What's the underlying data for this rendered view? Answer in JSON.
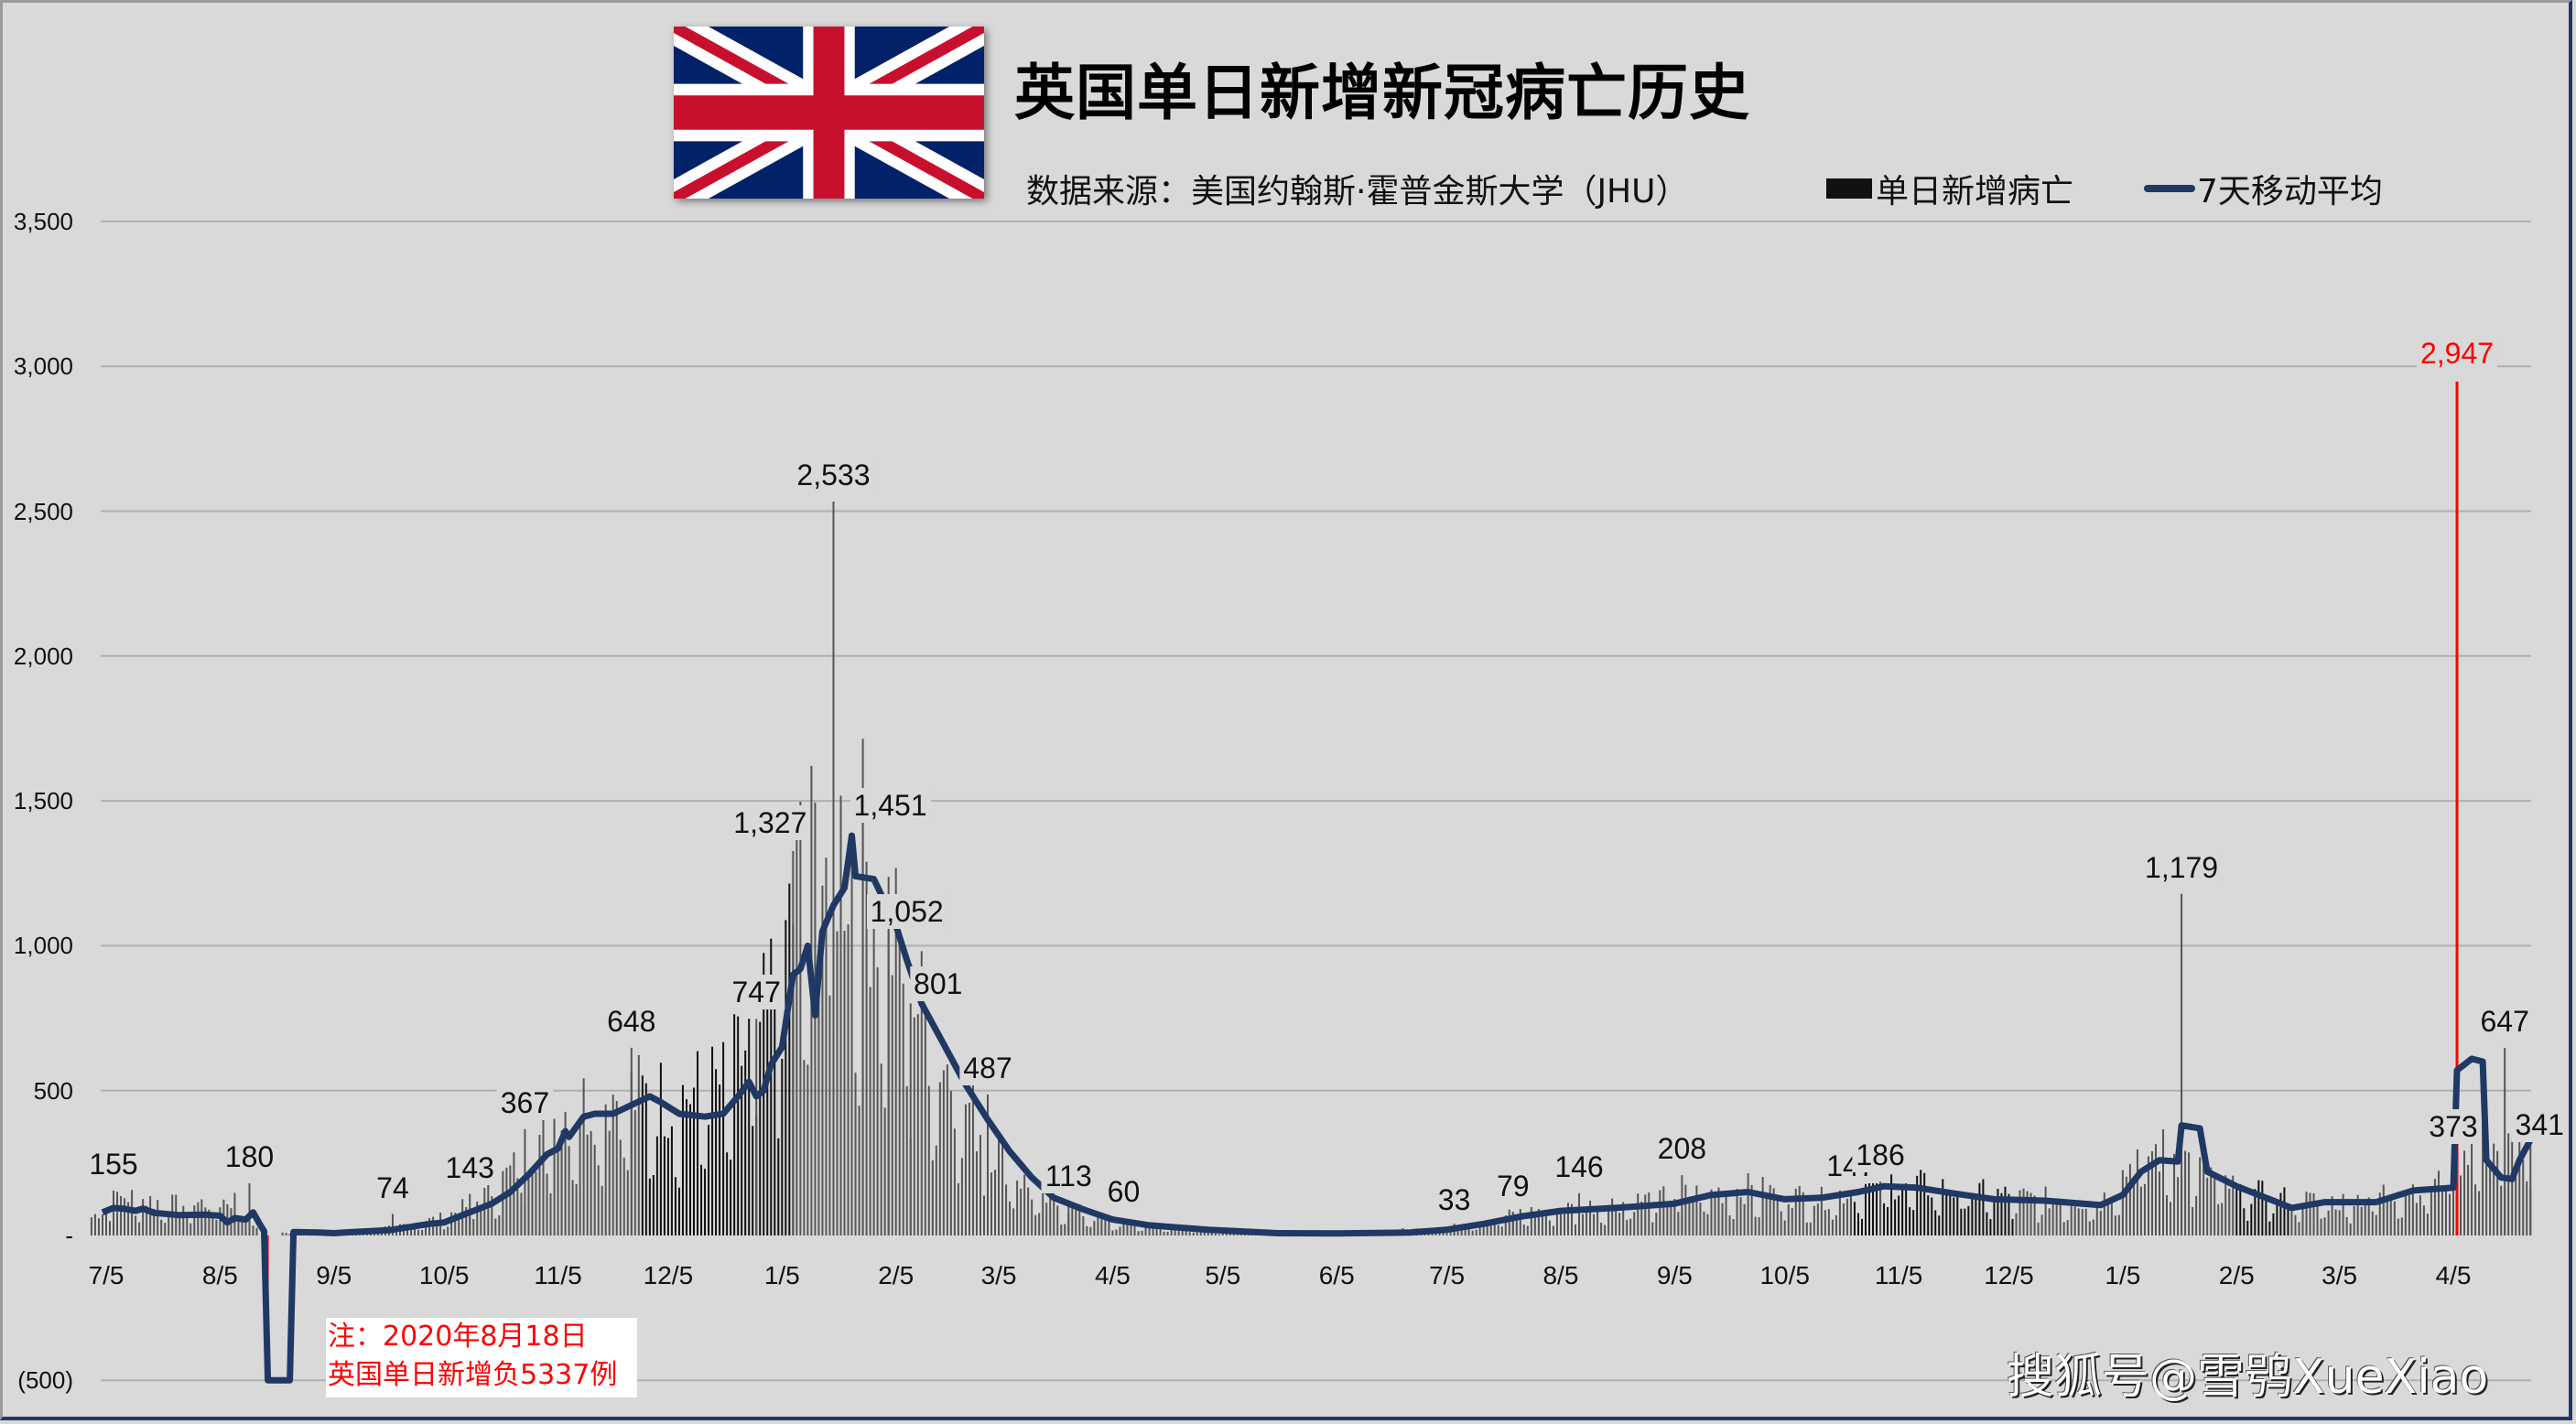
{
  "header": {
    "title": "英国单日新增新冠病亡历史",
    "source": "数据来源：美国约翰斯·霍普金斯大学（JHU）",
    "flag_icon": "uk-flag-icon"
  },
  "legend": {
    "bar_label": "单日新增病亡",
    "line_label": "7天移动平均"
  },
  "note": {
    "line1": "注：2020年8月18日",
    "line2": "英国单日新增负5337例"
  },
  "watermark": "搜狐号@雪鸮XueXiao",
  "colors": {
    "background": "#d9d9d9",
    "bars": "#555555",
    "bars_dark": "#111111",
    "ma_line": "#1f3864",
    "highlight": "#ff0000",
    "grid": "#b0b0b0"
  },
  "chart_data": {
    "type": "bar",
    "title": "英国单日新增新冠病亡历史",
    "subtitle": "数据来源：美国约翰斯·霍普金斯大学（JHU）",
    "xlabel": "",
    "ylabel": "",
    "ylim": [
      -500,
      3500
    ],
    "yticks": [
      {
        "value": 3500,
        "label": "3,500"
      },
      {
        "value": 3000,
        "label": "3,000"
      },
      {
        "value": 2500,
        "label": "2,500"
      },
      {
        "value": 2000,
        "label": "2,000"
      },
      {
        "value": 1500,
        "label": "1,500"
      },
      {
        "value": 1000,
        "label": "1,000"
      },
      {
        "value": 500,
        "label": "500"
      },
      {
        "value": 0,
        "label": "-"
      },
      {
        "value": -500,
        "label": "(500)"
      }
    ],
    "grid": true,
    "legend_position": "top",
    "x_tick_labels": [
      "7/5",
      "8/5",
      "9/5",
      "10/5",
      "11/5",
      "12/5",
      "1/5",
      "2/5",
      "3/5",
      "4/5",
      "5/5",
      "6/5",
      "7/5",
      "8/5",
      "9/5",
      "10/5",
      "11/5",
      "12/5",
      "1/5",
      "2/5",
      "3/5",
      "4/5"
    ],
    "x_range": [
      "2020-07-01",
      "2022-04-26"
    ],
    "series": [
      {
        "name": "单日新增病亡",
        "kind": "bar",
        "daily_envelope": [
          [
            "2020-07-01",
            60
          ],
          [
            "2020-07-10",
            130
          ],
          [
            "2020-07-25",
            100
          ],
          [
            "2020-08-03",
            110
          ],
          [
            "2020-08-10",
            120
          ],
          [
            "2020-08-15",
            20
          ],
          [
            "2020-08-18",
            -5337
          ],
          [
            "2020-08-22",
            10
          ],
          [
            "2020-09-05",
            12
          ],
          [
            "2020-09-20",
            25
          ],
          [
            "2020-10-05",
            60
          ],
          [
            "2020-10-15",
            120
          ],
          [
            "2020-10-25",
            230
          ],
          [
            "2020-11-05",
            400
          ],
          [
            "2020-11-20",
            470
          ],
          [
            "2020-12-05",
            450
          ],
          [
            "2020-12-20",
            500
          ],
          [
            "2020-12-31",
            700
          ],
          [
            "2021-01-10",
            1200
          ],
          [
            "2021-01-20",
            1300
          ],
          [
            "2021-01-27",
            1250
          ],
          [
            "2021-02-05",
            950
          ],
          [
            "2021-02-15",
            650
          ],
          [
            "2021-03-01",
            330
          ],
          [
            "2021-03-15",
            130
          ],
          [
            "2021-04-05",
            40
          ],
          [
            "2021-05-05",
            10
          ],
          [
            "2021-06-05",
            8
          ],
          [
            "2021-07-05",
            25
          ],
          [
            "2021-07-25",
            75
          ],
          [
            "2021-08-15",
            100
          ],
          [
            "2021-09-05",
            130
          ],
          [
            "2021-09-25",
            155
          ],
          [
            "2021-10-15",
            120
          ],
          [
            "2021-11-01",
            180
          ],
          [
            "2021-11-20",
            150
          ],
          [
            "2021-12-10",
            125
          ],
          [
            "2021-12-30",
            110
          ],
          [
            "2022-01-10",
            280
          ],
          [
            "2022-01-20",
            270
          ],
          [
            "2022-02-05",
            150
          ],
          [
            "2022-02-20",
            120
          ],
          [
            "2022-03-05",
            110
          ],
          [
            "2022-03-20",
            150
          ],
          [
            "2022-04-01",
            170
          ],
          [
            "2022-04-10",
            330
          ],
          [
            "2022-04-20",
            280
          ],
          [
            "2022-04-26",
            300
          ]
        ],
        "labeled_points": [
          {
            "date": "2020-07-07",
            "value": 155
          },
          {
            "date": "2020-08-13",
            "value": 180
          },
          {
            "date": "2020-09-21",
            "value": 74
          },
          {
            "date": "2020-10-12",
            "value": 143
          },
          {
            "date": "2020-10-27",
            "value": 367
          },
          {
            "date": "2020-11-25",
            "value": 648
          },
          {
            "date": "2020-12-29",
            "value": 747
          },
          {
            "date": "2021-01-08",
            "value": 1327
          },
          {
            "date": "2021-01-19",
            "value": 2533
          },
          {
            "date": "2021-01-27",
            "value": 1451
          },
          {
            "date": "2021-02-03",
            "value": 1052
          },
          {
            "date": "2021-02-09",
            "value": 801
          },
          {
            "date": "2021-03-02",
            "value": 487
          },
          {
            "date": "2021-03-24",
            "value": 113
          },
          {
            "date": "2021-04-08",
            "value": 60
          },
          {
            "date": "2021-07-07",
            "value": 33
          },
          {
            "date": "2021-07-23",
            "value": 79
          },
          {
            "date": "2021-08-10",
            "value": 146
          },
          {
            "date": "2021-09-07",
            "value": 208
          },
          {
            "date": "2021-10-23",
            "value": 147
          },
          {
            "date": "2021-10-31",
            "value": 186
          },
          {
            "date": "2022-01-21",
            "value": 1179
          },
          {
            "date": "2022-04-06",
            "value": 2947,
            "highlight": true
          },
          {
            "date": "2022-04-05",
            "value": 373
          },
          {
            "date": "2022-04-19",
            "value": 647
          },
          {
            "date": "2022-04-26",
            "value": 341
          }
        ],
        "negative_outlier": {
          "date": "2020-08-18",
          "value": -5337
        }
      },
      {
        "name": "7天移动平均",
        "kind": "line",
        "points": [
          [
            "2020-07-04",
            80
          ],
          [
            "2020-07-07",
            95
          ],
          [
            "2020-07-10",
            92
          ],
          [
            "2020-07-13",
            85
          ],
          [
            "2020-07-15",
            93
          ],
          [
            "2020-07-18",
            78
          ],
          [
            "2020-07-25",
            70
          ],
          [
            "2020-08-01",
            72
          ],
          [
            "2020-08-05",
            68
          ],
          [
            "2020-08-07",
            45
          ],
          [
            "2020-08-09",
            60
          ],
          [
            "2020-08-12",
            55
          ],
          [
            "2020-08-14",
            80
          ],
          [
            "2020-08-16",
            35
          ],
          [
            "2020-08-17",
            15
          ],
          [
            "2020-08-18",
            -500
          ],
          [
            "2020-08-24",
            -500
          ],
          [
            "2020-08-25",
            12
          ],
          [
            "2020-09-01",
            10
          ],
          [
            "2020-09-05",
            8
          ],
          [
            "2020-09-10",
            12
          ],
          [
            "2020-09-20",
            18
          ],
          [
            "2020-10-01",
            40
          ],
          [
            "2020-10-05",
            45
          ],
          [
            "2020-10-10",
            70
          ],
          [
            "2020-10-18",
            110
          ],
          [
            "2020-10-23",
            150
          ],
          [
            "2020-10-28",
            210
          ],
          [
            "2020-11-02",
            280
          ],
          [
            "2020-11-05",
            300
          ],
          [
            "2020-11-07",
            360
          ],
          [
            "2020-11-08",
            340
          ],
          [
            "2020-11-12",
            410
          ],
          [
            "2020-11-15",
            420
          ],
          [
            "2020-11-20",
            420
          ],
          [
            "2020-11-25",
            450
          ],
          [
            "2020-11-30",
            480
          ],
          [
            "2020-12-03",
            460
          ],
          [
            "2020-12-08",
            420
          ],
          [
            "2020-12-15",
            410
          ],
          [
            "2020-12-20",
            420
          ],
          [
            "2020-12-24",
            480
          ],
          [
            "2020-12-27",
            530
          ],
          [
            "2020-12-29",
            480
          ],
          [
            "2020-12-31",
            500
          ],
          [
            "2021-01-02",
            590
          ],
          [
            "2021-01-05",
            650
          ],
          [
            "2021-01-08",
            900
          ],
          [
            "2021-01-10",
            920
          ],
          [
            "2021-01-12",
            1000
          ],
          [
            "2021-01-14",
            760
          ],
          [
            "2021-01-16",
            1050
          ],
          [
            "2021-01-19",
            1140
          ],
          [
            "2021-01-22",
            1200
          ],
          [
            "2021-01-24",
            1380
          ],
          [
            "2021-01-25",
            1240
          ],
          [
            "2021-01-30",
            1230
          ],
          [
            "2021-02-05",
            1070
          ],
          [
            "2021-02-08",
            950
          ],
          [
            "2021-02-12",
            800
          ],
          [
            "2021-02-18",
            660
          ],
          [
            "2021-02-24",
            520
          ],
          [
            "2021-03-02",
            400
          ],
          [
            "2021-03-08",
            290
          ],
          [
            "2021-03-14",
            200
          ],
          [
            "2021-03-20",
            130
          ],
          [
            "2021-03-28",
            90
          ],
          [
            "2021-04-05",
            55
          ],
          [
            "2021-04-15",
            35
          ],
          [
            "2021-05-01",
            20
          ],
          [
            "2021-05-20",
            8
          ],
          [
            "2021-06-05",
            7
          ],
          [
            "2021-06-25",
            10
          ],
          [
            "2021-07-05",
            20
          ],
          [
            "2021-07-15",
            40
          ],
          [
            "2021-07-25",
            65
          ],
          [
            "2021-08-05",
            85
          ],
          [
            "2021-08-20",
            95
          ],
          [
            "2021-09-05",
            110
          ],
          [
            "2021-09-15",
            140
          ],
          [
            "2021-09-25",
            150
          ],
          [
            "2021-10-05",
            125
          ],
          [
            "2021-10-15",
            130
          ],
          [
            "2021-10-25",
            150
          ],
          [
            "2021-11-01",
            170
          ],
          [
            "2021-11-10",
            165
          ],
          [
            "2021-11-20",
            145
          ],
          [
            "2021-12-01",
            125
          ],
          [
            "2021-12-15",
            120
          ],
          [
            "2021-12-30",
            105
          ],
          [
            "2022-01-05",
            140
          ],
          [
            "2022-01-10",
            220
          ],
          [
            "2022-01-15",
            260
          ],
          [
            "2022-01-20",
            255
          ],
          [
            "2022-01-21",
            380
          ],
          [
            "2022-01-26",
            370
          ],
          [
            "2022-01-28",
            220
          ],
          [
            "2022-02-05",
            170
          ],
          [
            "2022-02-15",
            120
          ],
          [
            "2022-02-20",
            95
          ],
          [
            "2022-03-01",
            115
          ],
          [
            "2022-03-15",
            115
          ],
          [
            "2022-03-25",
            155
          ],
          [
            "2022-04-05",
            165
          ],
          [
            "2022-04-06",
            570
          ],
          [
            "2022-04-10",
            610
          ],
          [
            "2022-04-13",
            600
          ],
          [
            "2022-04-14",
            260
          ],
          [
            "2022-04-18",
            200
          ],
          [
            "2022-04-21",
            195
          ],
          [
            "2022-04-23",
            260
          ],
          [
            "2022-04-26",
            330
          ]
        ]
      }
    ],
    "annotation": "注：2020年8月18日 英国单日新增负5337例"
  }
}
